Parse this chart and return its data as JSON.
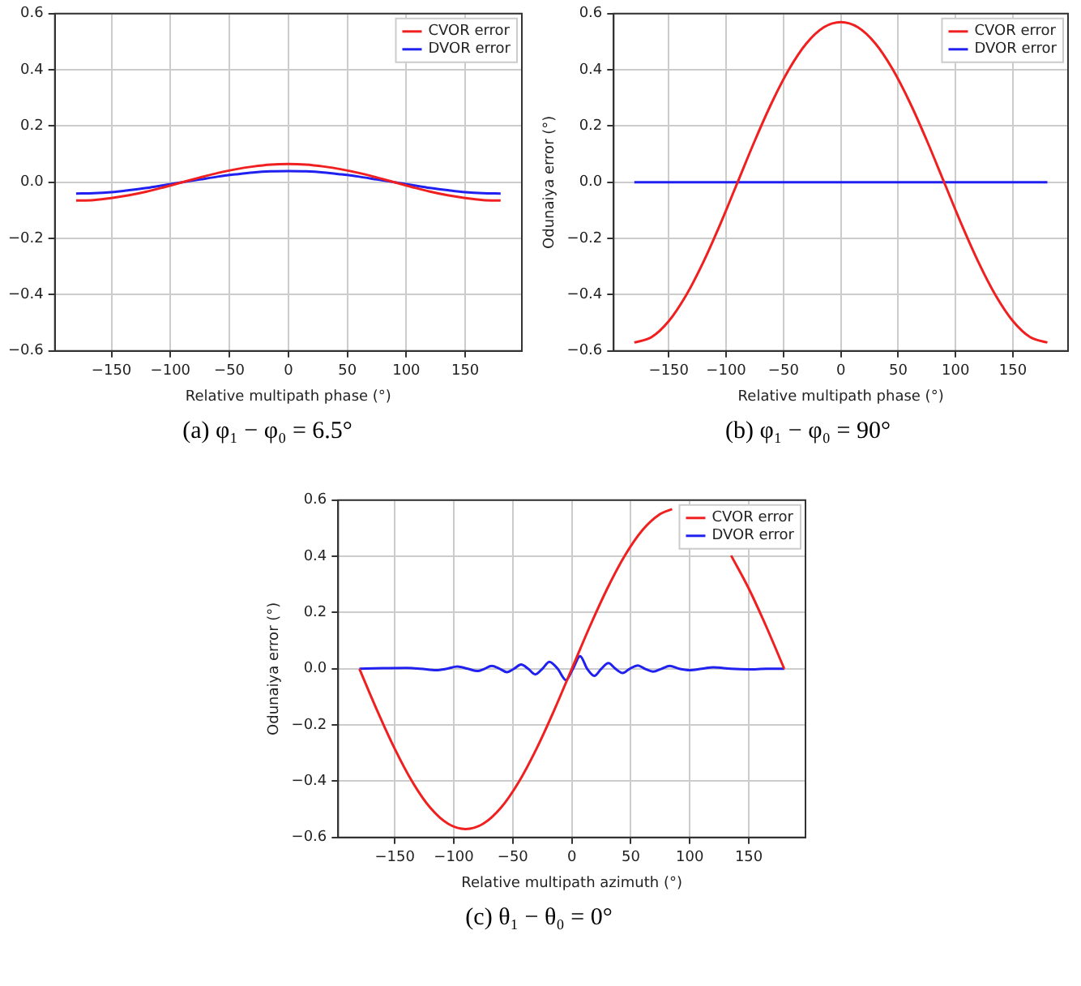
{
  "chart_data": [
    {
      "type": "line",
      "xlabel": "Relative multipath phase (°)",
      "annotations": [
        "(a) φ₁ − φ₀ = 6.5°"
      ],
      "x": [
        -180,
        -165,
        -150,
        -135,
        -120,
        -105,
        -90,
        -75,
        -60,
        -45,
        -30,
        -15,
        0,
        15,
        30,
        45,
        60,
        75,
        90,
        105,
        120,
        135,
        150,
        165,
        180
      ],
      "series": [
        {
          "name": "CVOR error",
          "color": "#f02020",
          "values": [
            -0.065,
            -0.063,
            -0.056,
            -0.046,
            -0.033,
            -0.017,
            0,
            0.017,
            0.033,
            0.046,
            0.056,
            0.063,
            0.065,
            0.063,
            0.056,
            0.046,
            0.033,
            0.017,
            0,
            -0.017,
            -0.033,
            -0.046,
            -0.056,
            -0.063,
            -0.065
          ]
        },
        {
          "name": "DVOR error",
          "color": "#2020f0",
          "values": [
            -0.04,
            -0.039,
            -0.035,
            -0.028,
            -0.02,
            -0.01,
            0,
            0.01,
            0.02,
            0.028,
            0.035,
            0.039,
            0.04,
            0.039,
            0.035,
            0.028,
            0.02,
            0.01,
            0,
            -0.01,
            -0.02,
            -0.028,
            -0.035,
            -0.039,
            -0.04
          ]
        }
      ],
      "xlim": [
        -198,
        198
      ],
      "xticks": [
        {
          "value": -150,
          "label": "−150"
        },
        {
          "value": -100,
          "label": "−100"
        },
        {
          "value": -50,
          "label": "−50"
        },
        0,
        50,
        100,
        150
      ],
      "ylim": [
        -0.6,
        0.6
      ],
      "yticks": [
        {
          "value": -0.6,
          "label": "−0.6"
        },
        {
          "value": -0.4,
          "label": "−0.4"
        },
        {
          "value": -0.2,
          "label": "−0.2"
        },
        {
          "value": 0,
          "label": "0.0"
        },
        0.2,
        0.4,
        0.6
      ],
      "grid": true,
      "legend": "top right",
      "marker": "none",
      "line_style": "solid"
    },
    {
      "type": "line",
      "xlabel": "Relative multipath phase (°)",
      "ylabel": "Odunaiya error (°)",
      "annotations": [
        "(b) φ₁ − φ₀ = 90°"
      ],
      "x": [
        -180,
        -165,
        -150,
        -135,
        -120,
        -105,
        -90,
        -75,
        -60,
        -45,
        -30,
        -15,
        0,
        15,
        30,
        45,
        60,
        75,
        90,
        105,
        120,
        135,
        150,
        165,
        180
      ],
      "series": [
        {
          "name": "CVOR error",
          "color": "#f02020",
          "values": [
            -0.57,
            -0.551,
            -0.494,
            -0.403,
            -0.285,
            -0.148,
            0,
            0.148,
            0.285,
            0.403,
            0.494,
            0.551,
            0.57,
            0.551,
            0.494,
            0.403,
            0.285,
            0.148,
            0,
            -0.148,
            -0.285,
            -0.403,
            -0.494,
            -0.551,
            -0.57
          ]
        },
        {
          "name": "DVOR error",
          "color": "#2020f0",
          "values": [
            0,
            0,
            0,
            0,
            0,
            0,
            0,
            0,
            0,
            0,
            0,
            0,
            0,
            0,
            0,
            0,
            0,
            0,
            0,
            0,
            0,
            0,
            0,
            0,
            0
          ]
        }
      ],
      "xlim": [
        -198,
        198
      ],
      "xticks": [
        {
          "value": -150,
          "label": "−150"
        },
        {
          "value": -100,
          "label": "−100"
        },
        {
          "value": -50,
          "label": "−50"
        },
        0,
        50,
        100,
        150
      ],
      "ylim": [
        -0.6,
        0.6
      ],
      "yticks": [
        {
          "value": -0.6,
          "label": "−0.6"
        },
        {
          "value": -0.4,
          "label": "−0.4"
        },
        {
          "value": -0.2,
          "label": "−0.2"
        },
        {
          "value": 0,
          "label": "0.0"
        },
        0.2,
        0.4,
        0.6
      ],
      "grid": true,
      "legend": "top right",
      "marker": "none",
      "line_style": "solid"
    },
    {
      "type": "line",
      "xlabel": "Relative multipath azimuth (°)",
      "ylabel": "Odunaiya error (°)",
      "annotations": [
        "(c) θ₁ − θ₀ = 0°"
      ],
      "series": [
        {
          "name": "CVOR error",
          "color": "#f02020",
          "x": [
            -180,
            -165,
            -150,
            -135,
            -120,
            -105,
            -90,
            -75,
            -60,
            -45,
            -30,
            -15,
            0,
            15,
            30,
            45,
            60,
            75,
            85,
            110,
            135,
            150,
            165,
            180
          ],
          "values": [
            0,
            -0.148,
            -0.285,
            -0.403,
            -0.494,
            -0.551,
            -0.57,
            -0.551,
            -0.494,
            -0.403,
            -0.285,
            -0.148,
            0,
            0.148,
            0.285,
            0.403,
            0.494,
            0.551,
            0.568,
            null,
            0.403,
            0.285,
            0.148,
            0
          ]
        },
        {
          "name": "DVOR error",
          "color": "#2020f0",
          "x": [
            -180,
            -160,
            -140,
            -128,
            -115,
            -106,
            -97,
            -88,
            -80,
            -74,
            -68,
            -61,
            -55,
            -49,
            -43,
            -37,
            -31,
            -25,
            -19,
            -12,
            -5,
            1,
            7,
            13,
            19,
            25,
            31,
            37,
            43,
            49,
            56,
            62,
            69,
            76,
            83,
            91,
            100,
            110,
            120,
            135,
            150,
            165,
            180
          ],
          "values": [
            0,
            0.002,
            0.003,
            0,
            -0.005,
            0,
            0.008,
            0,
            -0.008,
            0,
            0.01,
            0,
            -0.012,
            0,
            0.015,
            0,
            -0.02,
            0,
            0.025,
            0,
            -0.04,
            0,
            0.045,
            0,
            -0.025,
            0,
            0.02,
            0,
            -0.015,
            0,
            0.012,
            0,
            -0.01,
            0,
            0.01,
            0,
            -0.005,
            0,
            0.005,
            0,
            -0.002,
            0,
            0
          ]
        }
      ],
      "xlim": [
        -198,
        198
      ],
      "xticks": [
        {
          "value": -150,
          "label": "−150"
        },
        {
          "value": -100,
          "label": "−100"
        },
        {
          "value": -50,
          "label": "−50"
        },
        0,
        50,
        100,
        150
      ],
      "ylim": [
        -0.6,
        0.6
      ],
      "yticks": [
        {
          "value": -0.6,
          "label": "−0.6"
        },
        {
          "value": -0.4,
          "label": "−0.4"
        },
        {
          "value": -0.2,
          "label": "−0.2"
        },
        {
          "value": 0,
          "label": "0.0"
        },
        0.2,
        0.4,
        0.6
      ],
      "grid": true,
      "legend": "top right",
      "marker": "none",
      "line_style": "solid"
    }
  ]
}
